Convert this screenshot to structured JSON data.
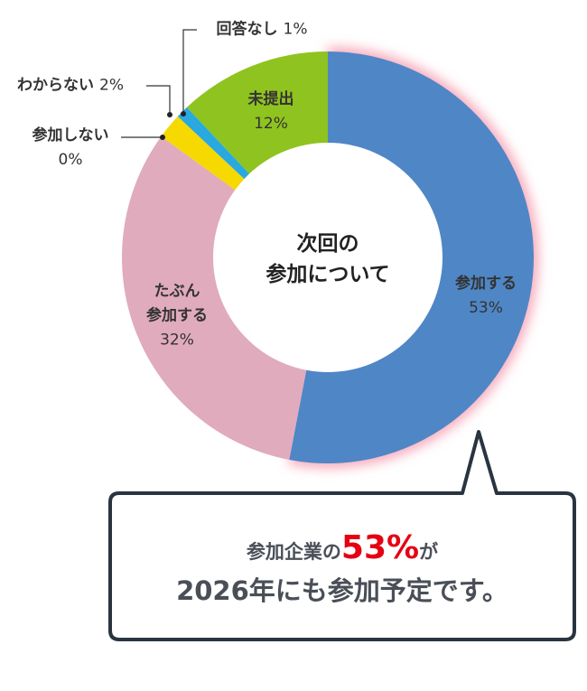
{
  "chart_data": {
    "type": "donut",
    "title": "次回の\n参加について",
    "categories": [
      "参加する",
      "たぶん\n参加する",
      "参加しない",
      "わからない",
      "回答なし",
      "未提出"
    ],
    "values": [
      53,
      32,
      0,
      2,
      1,
      12
    ],
    "value_labels": [
      "53%",
      "32%",
      "0%",
      "2%",
      "1%",
      "12%"
    ],
    "colors": [
      "#4f86c6",
      "#e0abbd",
      "#f6d900",
      "#f6d900",
      "#2aa8e0",
      "#8fc31f"
    ]
  },
  "callout": {
    "line1_pre": "参加企業の",
    "highlight": "53%",
    "line1_post": "が",
    "line2": "2026年にも参加予定です。"
  }
}
